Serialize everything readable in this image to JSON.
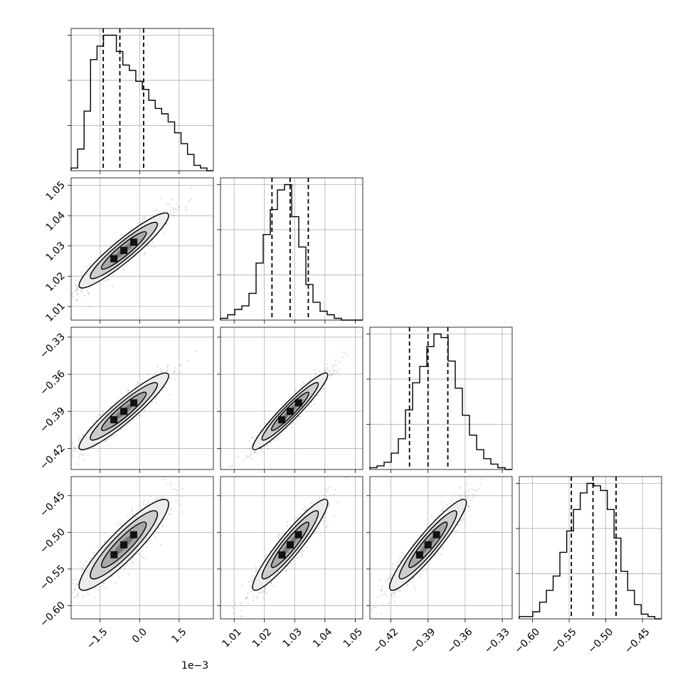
{
  "chart_data": {
    "type": "corner",
    "grid": true,
    "quantiles": [
      0.16,
      0.5,
      0.84
    ],
    "offset_text": "1e−3",
    "parameters": [
      {
        "range": [
          -2.6,
          2.8
        ],
        "ticks": [
          -1.5,
          0.0,
          1.5
        ],
        "tick_labels": [
          "−1.5",
          "0.0",
          "1.5"
        ],
        "quantile_values": [
          -1.38,
          -0.75,
          0.15
        ],
        "hist": [
          1,
          8,
          22,
          41,
          46,
          50,
          50,
          44,
          39,
          37,
          33,
          30,
          26,
          23,
          21,
          18,
          14,
          10,
          6,
          2,
          1,
          0
        ]
      },
      {
        "range": [
          1.0055,
          1.0525
        ],
        "ticks": [
          1.01,
          1.02,
          1.03,
          1.04,
          1.05
        ],
        "tick_labels": [
          "1.01",
          "1.02",
          "1.03",
          "1.04",
          "1.05"
        ],
        "quantile_values": [
          1.0225,
          1.0285,
          1.0345
        ],
        "hist": [
          1,
          3,
          6,
          8,
          15,
          32,
          48,
          62,
          73,
          76,
          58,
          41,
          20,
          10,
          5,
          3,
          1,
          0,
          0,
          0
        ]
      },
      {
        "range": [
          -0.437,
          -0.322
        ],
        "ticks": [
          -0.42,
          -0.39,
          -0.36,
          -0.33
        ],
        "tick_labels": [
          "−0.42",
          "−0.39",
          "−0.36",
          "−0.33"
        ],
        "quantile_values": [
          -0.405,
          -0.39,
          -0.374
        ],
        "hist": [
          1,
          2,
          4,
          9,
          17,
          33,
          48,
          57,
          68,
          75,
          73,
          60,
          45,
          30,
          19,
          11,
          6,
          3,
          1,
          0
        ]
      },
      {
        "range": [
          -0.618,
          -0.424
        ],
        "ticks": [
          -0.6,
          -0.55,
          -0.5,
          -0.45
        ],
        "tick_labels": [
          "−0.60",
          "−0.55",
          "−0.50",
          "−0.45"
        ],
        "quantile_values": [
          -0.547,
          -0.5175,
          -0.486
        ],
        "hist": [
          1,
          1,
          3,
          7,
          12,
          18,
          28,
          37,
          46,
          53,
          57,
          56,
          54,
          46,
          34,
          20,
          12,
          6,
          2,
          1,
          0
        ]
      }
    ],
    "pairs": [
      {
        "row": 1,
        "col": 0,
        "center": [
          -0.6,
          1.0285
        ],
        "sd": [
          0.85,
          0.0062
        ],
        "r": 0.93
      },
      {
        "row": 2,
        "col": 0,
        "center": [
          -0.6,
          -0.39
        ],
        "sd": [
          0.85,
          0.0155
        ],
        "r": 0.93
      },
      {
        "row": 2,
        "col": 1,
        "center": [
          1.0285,
          -0.39
        ],
        "sd": [
          0.0062,
          0.0155
        ],
        "r": 0.95
      },
      {
        "row": 3,
        "col": 0,
        "center": [
          -0.6,
          -0.517
        ],
        "sd": [
          0.85,
          0.031
        ],
        "r": 0.9
      },
      {
        "row": 3,
        "col": 1,
        "center": [
          1.0285,
          -0.517
        ],
        "sd": [
          0.0062,
          0.031
        ],
        "r": 0.93
      },
      {
        "row": 3,
        "col": 2,
        "center": [
          -0.39,
          -0.517
        ],
        "sd": [
          0.0155,
          0.031
        ],
        "r": 0.93
      }
    ]
  }
}
